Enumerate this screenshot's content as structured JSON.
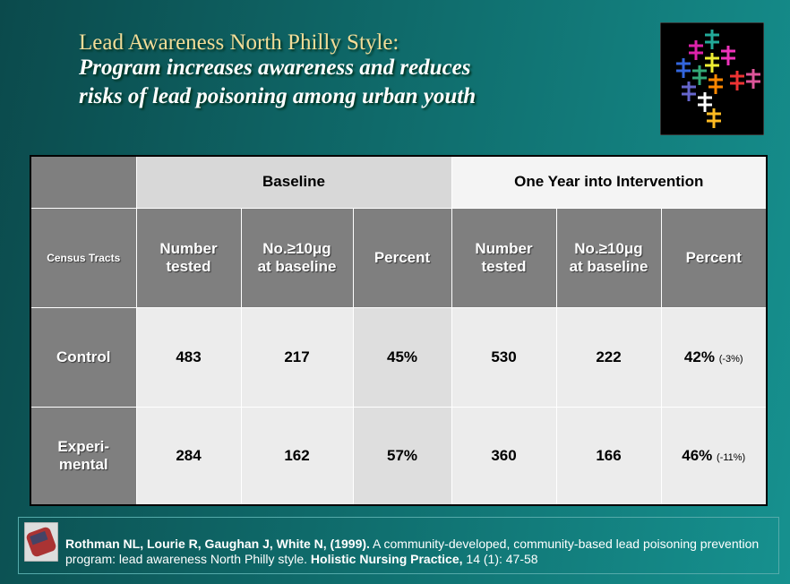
{
  "title": {
    "line1": "Lead Awareness North Philly Style:",
    "line2": "Program increases awareness and reduces",
    "line3": "risks of lead poisoning among urban youth"
  },
  "table": {
    "group_headers": [
      "Baseline",
      "One Year into Intervention"
    ],
    "column_headers": [
      "Census Tracts",
      "Number\ntested",
      "No.≥10μg\nat baseline",
      "Percent",
      "Number\ntested",
      "No.≥10μg\nat baseline",
      "Percent"
    ],
    "rows": [
      {
        "label": "Control",
        "values": [
          "483",
          "217",
          "45%",
          "530",
          "222",
          "42%"
        ],
        "change": "(-3%)"
      },
      {
        "label": "Experi-\nmental",
        "values": [
          "284",
          "162",
          "57%",
          "360",
          "166",
          "46%"
        ],
        "change": "(-11%)"
      }
    ]
  },
  "citation": {
    "authors": "Rothman NL, Lourie R, Gaughan J, White N, (1999).",
    "article": "A community-developed, community-based lead poisoning prevention program: lead awareness North Philly style.",
    "journal": "Holistic Nursing Practice,",
    "details": "14 (1): 47-58"
  }
}
